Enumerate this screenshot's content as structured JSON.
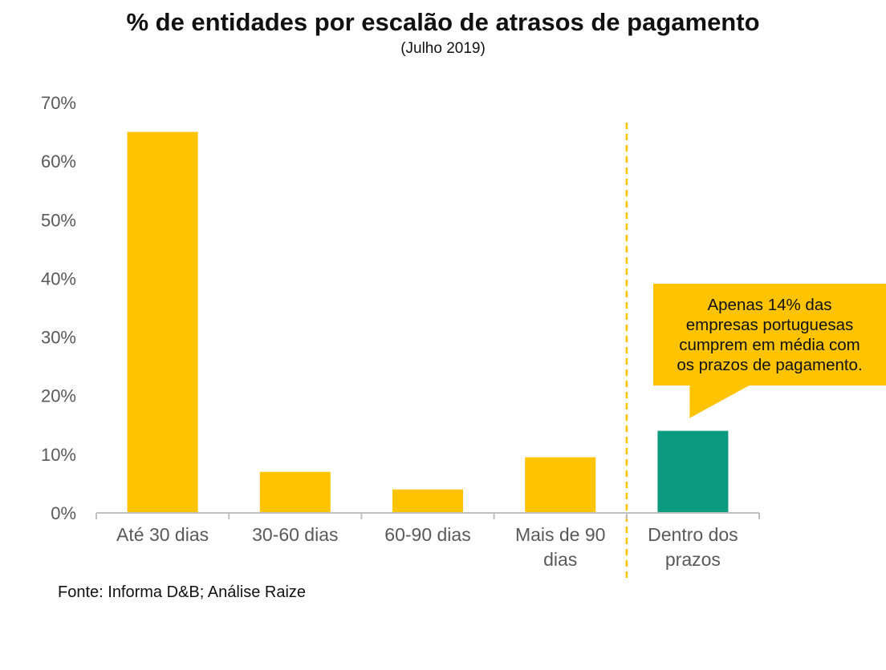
{
  "chart_data": {
    "type": "bar",
    "title": "% de entidades por escalão de atrasos de pagamento",
    "subtitle": "(Julho 2019)",
    "categories": [
      "Até 30 dias",
      "30-60 dias",
      "60-90 dias",
      "Mais de 90 dias",
      "Dentro dos prazos"
    ],
    "category_lines": [
      [
        "Até 30 dias"
      ],
      [
        "30-60 dias"
      ],
      [
        "60-90 dias"
      ],
      [
        "Mais de 90",
        "dias"
      ],
      [
        "Dentro dos",
        "prazos"
      ]
    ],
    "values": [
      65,
      7,
      4,
      9.5,
      14
    ],
    "ylim": [
      0,
      70
    ],
    "yticks": [
      0,
      10,
      20,
      30,
      40,
      50,
      60,
      70
    ],
    "ytick_labels": [
      "0%",
      "10%",
      "20%",
      "30%",
      "40%",
      "50%",
      "60%",
      "70%"
    ],
    "xlabel": "",
    "ylabel": "",
    "grid": false,
    "bar_colors": [
      "#FFC300",
      "#FFC300",
      "#FFC300",
      "#FFC300",
      "#0A9A80"
    ],
    "divider_color": "#FFC300",
    "annotation": {
      "text": "Apenas 14% das\nempresas portuguesas\ncumprem em média com\nos prazos de pagamento.",
      "color": "#FFC300",
      "target_category": "Dentro dos prazos"
    },
    "source": "Fonte: Informa D&B; Análise Raize"
  }
}
